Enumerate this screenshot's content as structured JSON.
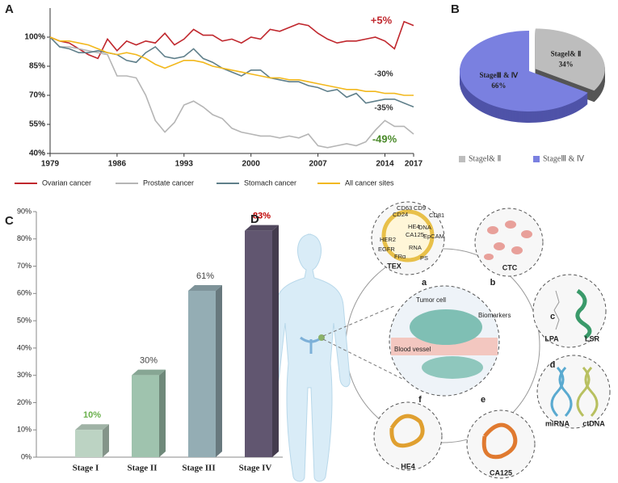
{
  "chart_data": [
    {
      "type": "line",
      "panel": "A",
      "x": [
        1979,
        1980,
        1981,
        1982,
        1983,
        1984,
        1985,
        1986,
        1987,
        1988,
        1989,
        1990,
        1991,
        1992,
        1993,
        1994,
        1995,
        1996,
        1997,
        1998,
        1999,
        2000,
        2001,
        2002,
        2003,
        2004,
        2005,
        2006,
        2007,
        2008,
        2009,
        2010,
        2011,
        2012,
        2013,
        2014,
        2015,
        2016,
        2017
      ],
      "xlim": [
        1979,
        2017
      ],
      "xticks": [
        1979,
        1986,
        1993,
        2000,
        2007,
        2014,
        2017
      ],
      "ylim": [
        40,
        115
      ],
      "yticks": [
        {
          "value": 40,
          "label": "40%"
        },
        {
          "value": 55,
          "label": "55%"
        },
        {
          "value": 70,
          "label": "70%"
        },
        {
          "value": 85,
          "label": "85%"
        },
        {
          "value": 100,
          "label": "100%"
        }
      ],
      "series": [
        {
          "name": "Ovarian cancer",
          "color": "#c0272d",
          "values": [
            100,
            98,
            97,
            94,
            91,
            89,
            99,
            93,
            98,
            96,
            98,
            97,
            102,
            96,
            99,
            104,
            101,
            101,
            98,
            99,
            97,
            100,
            99,
            104,
            103,
            105,
            107,
            106,
            102,
            99,
            97,
            98,
            98,
            99,
            100,
            98,
            94,
            108,
            106
          ]
        },
        {
          "name": "Prostate cancer",
          "color": "#b5b5b5",
          "values": [
            100,
            95,
            95,
            94,
            93,
            92,
            91,
            80,
            80,
            79,
            70,
            57,
            51,
            56,
            65,
            67,
            64,
            60,
            58,
            53,
            51,
            50,
            49,
            49,
            48,
            49,
            48,
            50,
            44,
            43,
            44,
            45,
            44,
            46,
            52,
            57,
            54,
            54,
            50
          ]
        },
        {
          "name": "Stomach cancer",
          "color": "#5f7f8a",
          "values": [
            100,
            95,
            94,
            92,
            92,
            93,
            92,
            91,
            88,
            87,
            92,
            95,
            90,
            89,
            90,
            94,
            89,
            87,
            84,
            82,
            80,
            83,
            83,
            79,
            78,
            77,
            77,
            75,
            74,
            72,
            73,
            69,
            71,
            66,
            67,
            68,
            68,
            66,
            64
          ]
        },
        {
          "name": "All cancer sites",
          "color": "#f2b81c",
          "values": [
            100,
            98,
            98,
            97,
            96,
            94,
            92,
            91,
            92,
            91,
            89,
            86,
            84,
            86,
            88,
            88,
            87,
            85,
            84,
            83,
            82,
            81,
            80,
            79,
            79,
            78,
            78,
            77,
            76,
            75,
            74,
            73,
            73,
            72,
            72,
            71,
            71,
            70,
            70
          ]
        }
      ],
      "annotations": [
        "+5%",
        "-30%",
        "-35%",
        "-49%"
      ],
      "annotation_colors": [
        "#c0272d",
        "#333333",
        "#333333",
        "#4a8a2a"
      ]
    },
    {
      "type": "pie",
      "panel": "B",
      "categories": [
        "StageⅠ& Ⅱ",
        "StageⅢ & Ⅳ"
      ],
      "values": [
        34,
        66
      ],
      "value_labels": [
        "34%",
        "66%"
      ],
      "colors": [
        "#bdbdbd",
        "#7a80e0"
      ],
      "side_colors": [
        "#555555",
        "#4f53a8"
      ]
    },
    {
      "type": "bar",
      "panel": "C",
      "categories": [
        "Stage I",
        "Stage II",
        "Stage III",
        "Stage IV"
      ],
      "values": [
        10,
        30,
        61,
        83
      ],
      "value_labels": [
        "10%",
        "30%",
        "61%",
        "83%"
      ],
      "value_label_colors": [
        "#6ab04c",
        "#444444",
        "#444444",
        "#c00000"
      ],
      "colors": [
        "#bcd3c3",
        "#9fc3ae",
        "#94adb4",
        "#615670"
      ],
      "ylim": [
        0,
        90
      ],
      "yticks": [
        {
          "value": 0,
          "label": "0%"
        },
        {
          "value": 10,
          "label": "10%"
        },
        {
          "value": 20,
          "label": "20%"
        },
        {
          "value": 30,
          "label": "30%"
        },
        {
          "value": 40,
          "label": "40%"
        },
        {
          "value": 50,
          "label": "50%"
        },
        {
          "value": 60,
          "label": "60%"
        },
        {
          "value": 70,
          "label": "70%"
        },
        {
          "value": 80,
          "label": "80%"
        },
        {
          "value": 90,
          "label": "90%"
        }
      ],
      "grid": false
    }
  ],
  "diagram": {
    "panel": "D",
    "nodes": [
      "TEX",
      "CTC",
      "LPA",
      "LSR",
      "miRNA",
      "ctDNA",
      "CA125",
      "HE4"
    ],
    "letters": [
      "a",
      "b",
      "c",
      "d",
      "e",
      "f"
    ],
    "tumor_labels": [
      "Tumor cell",
      "Biomarkers",
      "Blood vessel"
    ],
    "exosome_markers": [
      "CD63",
      "CD9",
      "CD24",
      "CD81",
      "HE4",
      "DNA",
      "CA125",
      "EpCAM",
      "HER2",
      "RNA",
      "EGFR",
      "FRα",
      "PS"
    ]
  }
}
